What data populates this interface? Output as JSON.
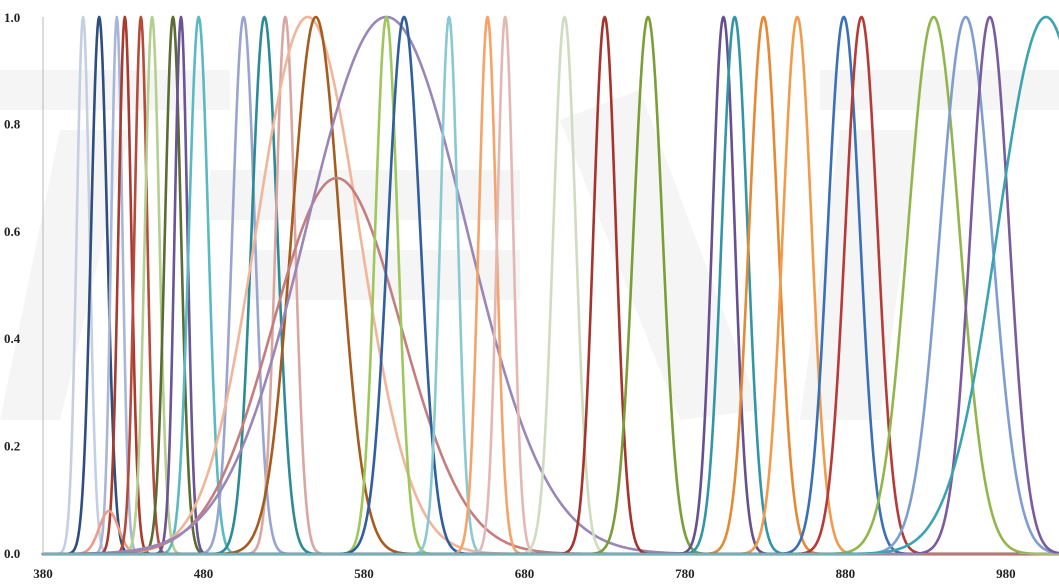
{
  "chart_data": {
    "type": "line",
    "title": "",
    "xlabel": "",
    "ylabel": "",
    "xlim": [
      380,
      1000
    ],
    "ylim": [
      0,
      1
    ],
    "x_ticks": [
      "380",
      "480",
      "580",
      "680",
      "780",
      "880",
      "980"
    ],
    "y_ticks": [
      "0.0",
      "0.2",
      "0.4",
      "0.6",
      "0.8",
      "1.0"
    ],
    "grid": false,
    "legend": "none",
    "series": [
      {
        "color": "#c5cfe3",
        "peak_x": 405,
        "peak_y": 1.0,
        "width": 4
      },
      {
        "color": "#2e4e7e",
        "peak_x": 415,
        "peak_y": 1.0,
        "width": 5
      },
      {
        "color": "#a8b6d8",
        "peak_x": 426,
        "peak_y": 1.0,
        "width": 3.5
      },
      {
        "color": "#a83a2e",
        "peak_x": 431,
        "peak_y": 1.0,
        "width": 4
      },
      {
        "color": "#ee9a86",
        "peak_x": 421,
        "peak_y": 0.08,
        "width": 6
      },
      {
        "color": "#b64a3b",
        "peak_x": 441,
        "peak_y": 1.0,
        "width": 4
      },
      {
        "color": "#b4cf8e",
        "peak_x": 448,
        "peak_y": 1.0,
        "width": 4.5
      },
      {
        "color": "#5a6c34",
        "peak_x": 461,
        "peak_y": 1.0,
        "width": 5
      },
      {
        "color": "#6b5494",
        "peak_x": 466,
        "peak_y": 1.0,
        "width": 4
      },
      {
        "color": "#5abac4",
        "peak_x": 477,
        "peak_y": 1.0,
        "width": 6
      },
      {
        "color": "#9aa5cf",
        "peak_x": 505,
        "peak_y": 1.0,
        "width": 7
      },
      {
        "color": "#2b8b96",
        "peak_x": 518,
        "peak_y": 1.0,
        "width": 8
      },
      {
        "color": "#d9a7a1",
        "peak_x": 531,
        "peak_y": 1.0,
        "width": 6
      },
      {
        "color": "#f2b59a",
        "peak_x": 545,
        "peak_y": 1.0,
        "width": 32
      },
      {
        "color": "#a65c1e",
        "peak_x": 550,
        "peak_y": 1.0,
        "width": 15
      },
      {
        "color": "#c57e7d",
        "peak_x": 563,
        "peak_y": 0.7,
        "width": 40
      },
      {
        "color": "#9a86b8",
        "peak_x": 594,
        "peak_y": 1.0,
        "width": 50
      },
      {
        "color": "#9fc75c",
        "peak_x": 594,
        "peak_y": 1.0,
        "width": 7
      },
      {
        "color": "#2f5f9e",
        "peak_x": 605,
        "peak_y": 1.0,
        "width": 10
      },
      {
        "color": "#89c9d4",
        "peak_x": 633,
        "peak_y": 1.0,
        "width": 5.5
      },
      {
        "color": "#f5a368",
        "peak_x": 657,
        "peak_y": 1.0,
        "width": 5.5
      },
      {
        "color": "#e3b8b4",
        "peak_x": 668,
        "peak_y": 1.0,
        "width": 5
      },
      {
        "color": "#cfdcc0",
        "peak_x": 705,
        "peak_y": 1.0,
        "width": 7
      },
      {
        "color": "#a6342d",
        "peak_x": 730,
        "peak_y": 1.0,
        "width": 7
      },
      {
        "color": "#7a9f36",
        "peak_x": 757,
        "peak_y": 1.0,
        "width": 9
      },
      {
        "color": "#67508f",
        "peak_x": 804,
        "peak_y": 1.0,
        "width": 7
      },
      {
        "color": "#3396a6",
        "peak_x": 811,
        "peak_y": 1.0,
        "width": 8
      },
      {
        "color": "#e58934",
        "peak_x": 829,
        "peak_y": 1.0,
        "width": 9
      },
      {
        "color": "#f19c4d",
        "peak_x": 850,
        "peak_y": 1.0,
        "width": 9
      },
      {
        "color": "#3a70b8",
        "peak_x": 879,
        "peak_y": 1.0,
        "width": 10
      },
      {
        "color": "#b63a38",
        "peak_x": 890,
        "peak_y": 1.0,
        "width": 10
      },
      {
        "color": "#93b64c",
        "peak_x": 935,
        "peak_y": 1.0,
        "width": 16
      },
      {
        "color": "#7f9ecf",
        "peak_x": 955,
        "peak_y": 1.0,
        "width": 16
      },
      {
        "color": "#7a5c9e",
        "peak_x": 970,
        "peak_y": 1.0,
        "width": 12
      },
      {
        "color": "#3aa4b0",
        "peak_x": 1005,
        "peak_y": 1.0,
        "width": 30
      }
    ]
  }
}
